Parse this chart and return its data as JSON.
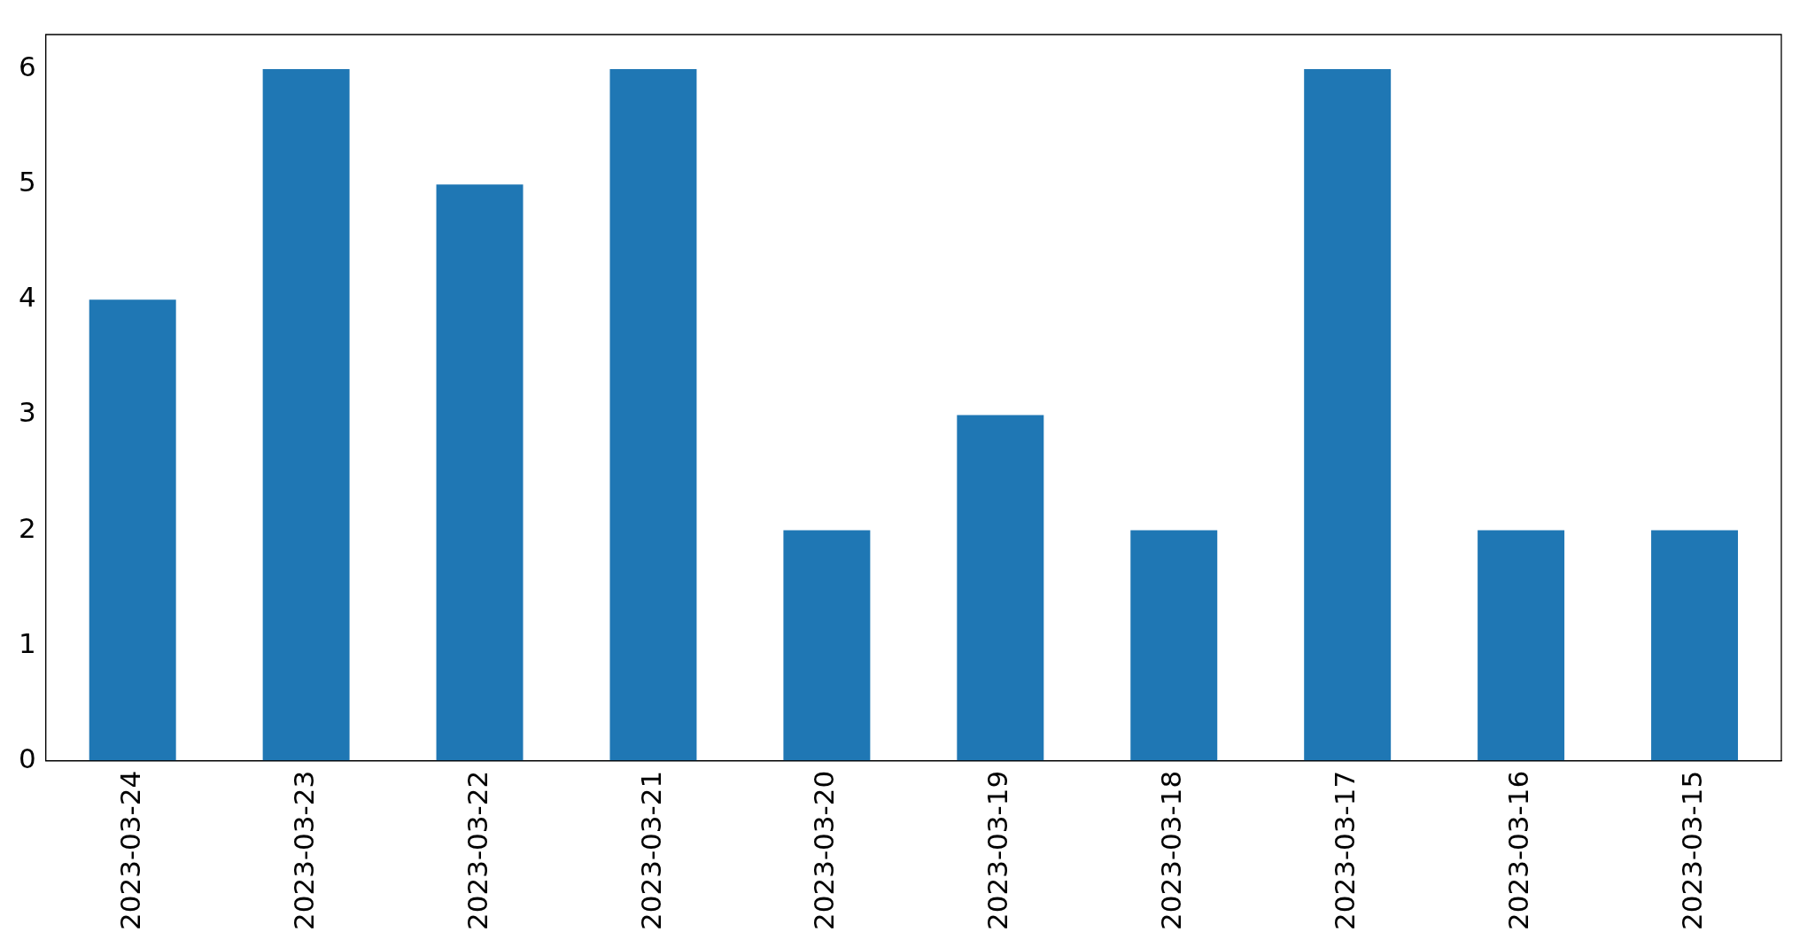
{
  "chart_data": {
    "type": "bar",
    "categories": [
      "2023-03-24",
      "2023-03-23",
      "2023-03-22",
      "2023-03-21",
      "2023-03-20",
      "2023-03-19",
      "2023-03-18",
      "2023-03-17",
      "2023-03-16",
      "2023-03-15"
    ],
    "values": [
      4,
      6,
      5,
      6,
      2,
      3,
      2,
      6,
      2,
      2
    ],
    "color": "#1f77b4",
    "ylim": [
      0,
      6.3
    ],
    "yticks": [
      0,
      1,
      2,
      3,
      4,
      5,
      6
    ],
    "grid": false,
    "legend": false
  }
}
